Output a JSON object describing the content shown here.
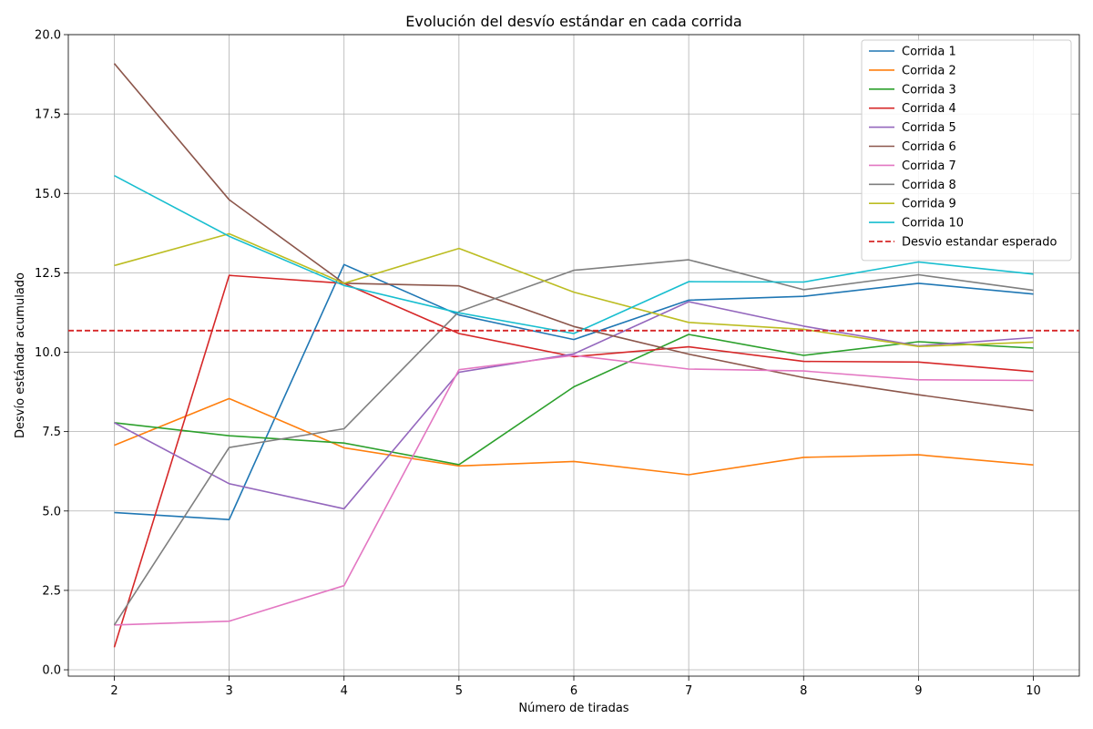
{
  "chart_data": {
    "type": "line",
    "title": "Evolución del desvío estándar en cada corrida",
    "xlabel": "Número de tiradas",
    "ylabel": "Desvío estándar acumulado",
    "x": [
      2,
      3,
      4,
      5,
      6,
      7,
      8,
      9,
      10
    ],
    "xlim": [
      1.6,
      10.4
    ],
    "ylim": [
      -0.2,
      20.0
    ],
    "xticks": [
      "2",
      "3",
      "4",
      "5",
      "6",
      "7",
      "8",
      "9",
      "10"
    ],
    "yticks": [
      "0.0",
      "2.5",
      "5.0",
      "7.5",
      "10.0",
      "12.5",
      "15.0",
      "17.5",
      "20.0"
    ],
    "grid": true,
    "legend_position": "top-right",
    "series": [
      {
        "name": "Corrida 1",
        "color": "#1f77b4",
        "values": [
          4.95,
          4.73,
          12.76,
          11.17,
          10.4,
          11.64,
          11.76,
          12.17,
          11.83
        ]
      },
      {
        "name": "Corrida 2",
        "color": "#ff7f0e",
        "values": [
          7.07,
          8.54,
          6.99,
          6.42,
          6.56,
          6.14,
          6.69,
          6.77,
          6.45
        ]
      },
      {
        "name": "Corrida 3",
        "color": "#2ca02c",
        "values": [
          7.78,
          7.37,
          7.14,
          6.46,
          8.91,
          10.56,
          9.9,
          10.33,
          10.13
        ]
      },
      {
        "name": "Corrida 4",
        "color": "#d62728",
        "values": [
          0.71,
          12.42,
          12.17,
          10.59,
          9.86,
          10.17,
          9.71,
          9.69,
          9.39
        ]
      },
      {
        "name": "Corrida 5",
        "color": "#9467bd",
        "values": [
          7.78,
          5.86,
          5.07,
          9.37,
          9.95,
          11.59,
          10.82,
          10.2,
          10.46
        ]
      },
      {
        "name": "Corrida 6",
        "color": "#8c564b",
        "values": [
          19.09,
          14.8,
          12.17,
          12.09,
          10.81,
          9.94,
          9.2,
          8.66,
          8.16
        ]
      },
      {
        "name": "Corrida 7",
        "color": "#e377c2",
        "values": [
          1.41,
          1.53,
          2.65,
          9.45,
          9.9,
          9.47,
          9.41,
          9.13,
          9.11
        ]
      },
      {
        "name": "Corrida 8",
        "color": "#7f7f7f",
        "values": [
          1.41,
          7.0,
          7.59,
          11.28,
          12.58,
          12.91,
          11.97,
          12.44,
          11.95
        ]
      },
      {
        "name": "Corrida 9",
        "color": "#bcbd22",
        "values": [
          12.73,
          13.73,
          12.17,
          13.27,
          11.89,
          10.94,
          10.72,
          10.18,
          10.32
        ]
      },
      {
        "name": "Corrida 10",
        "color": "#17becf",
        "values": [
          15.56,
          13.65,
          12.1,
          11.24,
          10.59,
          12.22,
          12.21,
          12.84,
          12.46
        ]
      }
    ],
    "reference_line": {
      "name": "Desvio estandar esperado",
      "color": "#d62728",
      "style": "dashed",
      "value": 10.68
    }
  }
}
